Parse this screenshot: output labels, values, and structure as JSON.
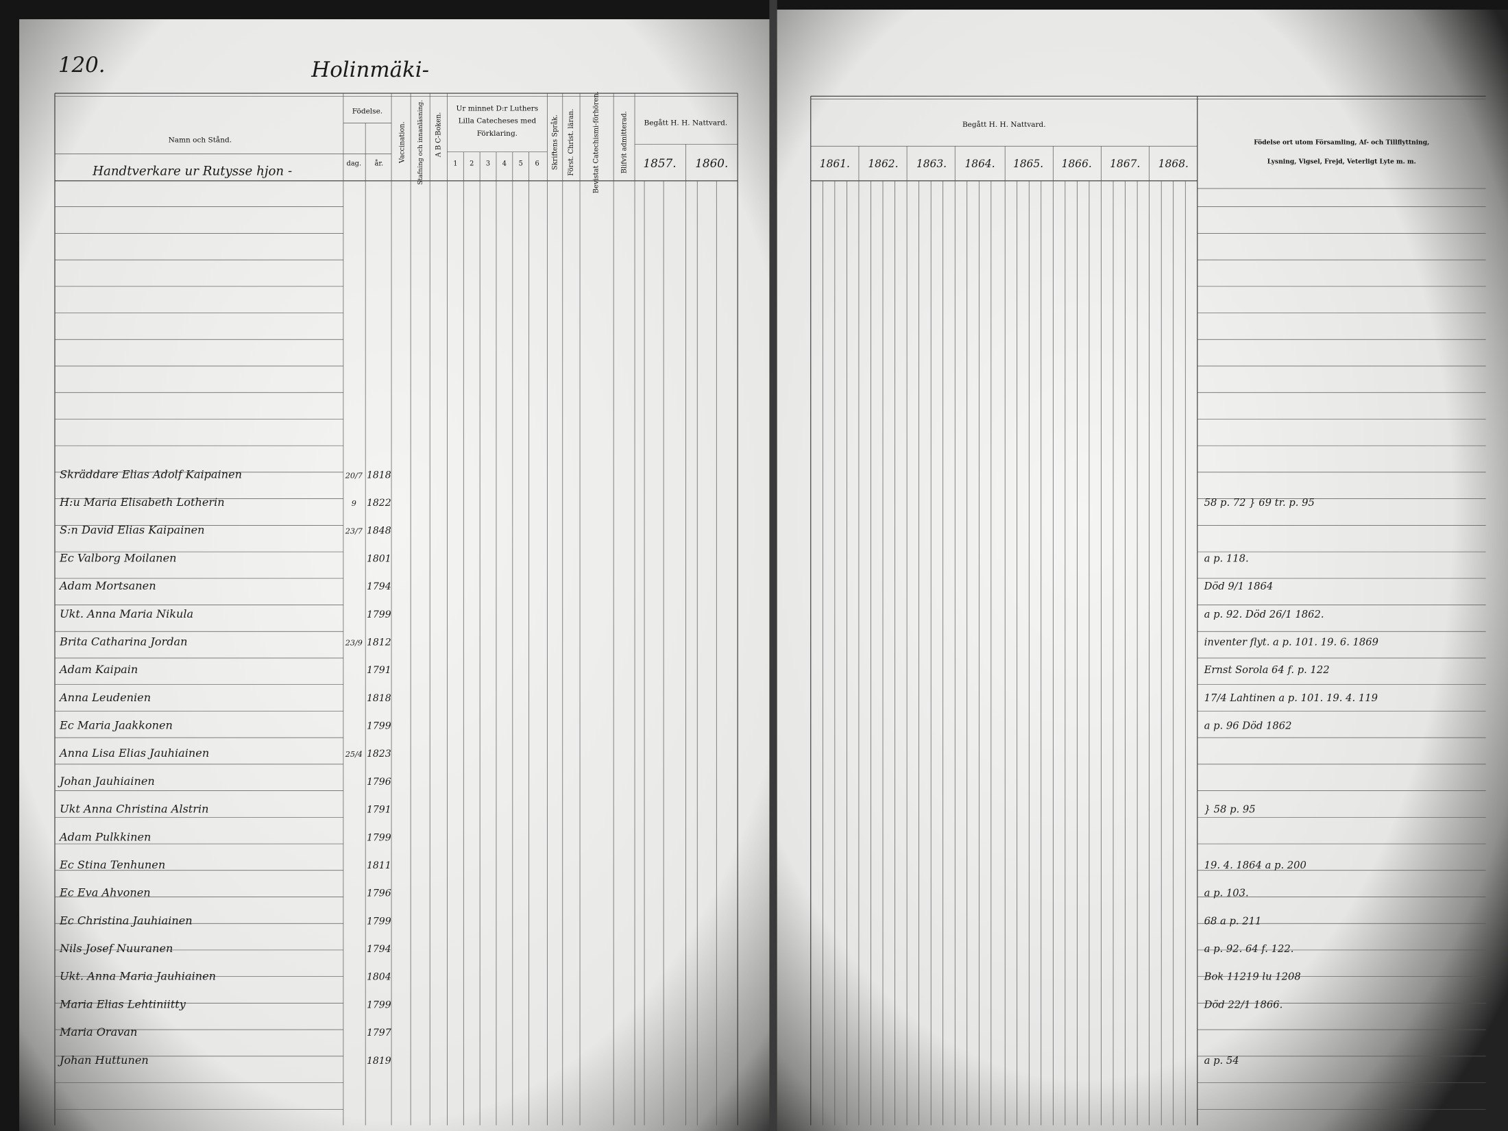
{
  "left_page": {
    "page_number": "120.",
    "village": "Holinmäki-",
    "household": "Handtverkare ur Rutysse hjon -",
    "headers": {
      "name": "Namn och Stånd.",
      "birth": "Födelse.",
      "day": "dag.",
      "year": "år.",
      "vaccination": "Vaccination.",
      "reading": "Stafning och innanläsning.",
      "abc": "A B C-Boken.",
      "catechism": [
        "Ur minnet D:r Luthers",
        "Lilla Catecheses med",
        "Förklaring."
      ],
      "catechism_parts": [
        "1",
        "2",
        "3",
        "4",
        "5",
        "6"
      ],
      "scripture": "Skriftens Språk.",
      "christian": "Först. Christ. läran.",
      "hearings": "Bevistat Catechismi-förhören.",
      "admitted": "Blifvit admitterad.",
      "communion": "Begått H. H. Nattvard.",
      "communion_years": [
        "1857.",
        "1860."
      ]
    },
    "rows": [
      {
        "name": "Skräddare Elias Adolf Kaipainen",
        "day": "20/7",
        "year": "1818"
      },
      {
        "name": "H:u Maria Elisabeth Lotherin",
        "day": "9",
        "year": "1822",
        "remark": "58 p. 72 } 69 tr. p. 95"
      },
      {
        "name": "S:n David Elias Kaipainen",
        "day": "23/7",
        "year": "1848"
      },
      {
        "name": "Ec Valborg Moilanen",
        "year": "1801",
        "remark": "a p. 118."
      },
      {
        "name": "Adam Mortsanen",
        "year": "1794",
        "remark": "Död 9/1 1864"
      },
      {
        "name": "Ukt. Anna Maria Nikula",
        "year": "1799",
        "remark": "a p. 92. Död 26/1 1862."
      },
      {
        "name": "Brita Catharina Jordan",
        "day": "23/9",
        "year": "1812",
        "remark": "inventer flyt. a p. 101. 19. 6. 1869"
      },
      {
        "name": "Adam Kaipain",
        "year": "1791",
        "remark": "Ernst Sorola 64 f. p. 122"
      },
      {
        "name": "Anna Leudenien",
        "year": "1818",
        "remark": "17/4 Lahtinen a p. 101. 19. 4. 119"
      },
      {
        "name": "Ec Maria Jaakkonen",
        "year": "1799",
        "remark": "a p. 96 Död 1862"
      },
      {
        "name": "Anna Lisa Elias Jauhiainen",
        "day": "25/4",
        "year": "1823"
      },
      {
        "name": "Johan Jauhiainen",
        "year": "1796"
      },
      {
        "name": "Ukt Anna Christina Alstrin",
        "year": "1791",
        "remark": "} 58 p. 95"
      },
      {
        "name": "Adam Pulkkinen",
        "year": "1799"
      },
      {
        "name": "Ec Stina Tenhunen",
        "year": "1811",
        "remark": "19. 4. 1864 a p. 200"
      },
      {
        "name": "Ec Eva Ahvonen",
        "year": "1796",
        "remark": "a p. 103."
      },
      {
        "name": "Ec Christina Jauhiainen",
        "year": "1799",
        "remark": "68 a p. 211"
      },
      {
        "name": "Nils Josef Nuuranen",
        "year": "1794",
        "remark": "a p. 92. 64 f. 122."
      },
      {
        "name": "Ukt. Anna Maria Jauhiainen",
        "year": "1804",
        "remark": "Bok 11219 lu 1208"
      },
      {
        "name": "Maria Elias Lehtiniitty",
        "year": "1799",
        "remark": "Död 22/1 1866."
      },
      {
        "name": "Maria Oravan",
        "year": "1797"
      },
      {
        "name": "Johan Huttunen",
        "year": "1819",
        "remark": "a p. 54"
      }
    ]
  },
  "right_page": {
    "communion": "Begått H. H. Nattvard.",
    "years": [
      "1861.",
      "1862.",
      "1863.",
      "1864.",
      "1865.",
      "1866.",
      "1867.",
      "1868."
    ],
    "remarks_header": [
      "Födelse ort utom Församling, Af- och Tillflyttning,",
      "Lysning, Vigsel, Frejd, Veterligt Lyte m. m."
    ]
  }
}
